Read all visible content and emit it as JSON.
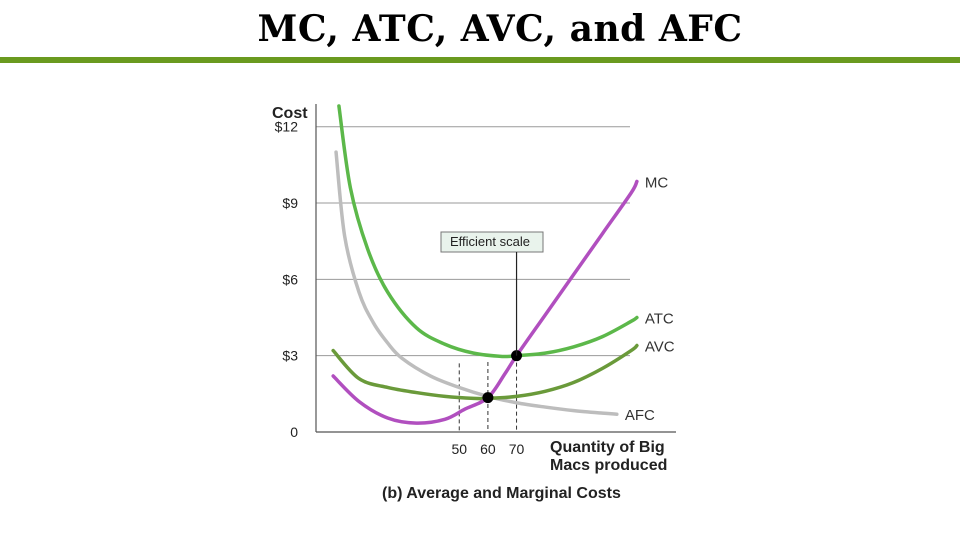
{
  "slide": {
    "title": "MC, ATC, AVC, and AFC",
    "accent_color": "#6a9a1f"
  },
  "caption": "(b) Average and Marginal Costs",
  "chart_data": {
    "type": "line",
    "ylabel": "Cost",
    "xlabel": "Quantity of Big Macs produced",
    "ylim": [
      0,
      12.7
    ],
    "xlim": [
      0,
      135
    ],
    "yticks": [
      {
        "value": 0,
        "label": "0"
      },
      {
        "value": 3,
        "label": "$3"
      },
      {
        "value": 6,
        "label": "$6"
      },
      {
        "value": 9,
        "label": "$9"
      },
      {
        "value": 12,
        "label": "$12"
      }
    ],
    "xticks": [
      {
        "value": 50,
        "label": "50"
      },
      {
        "value": 60,
        "label": "60"
      },
      {
        "value": 70,
        "label": "70"
      }
    ],
    "grid_y": true,
    "series": [
      {
        "name": "MC",
        "color": "#b14fbf",
        "x": [
          6,
          15,
          25,
          35,
          45,
          52,
          60,
          66,
          70,
          80,
          90,
          100,
          110,
          112
        ],
        "y": [
          2.2,
          1.2,
          0.55,
          0.35,
          0.5,
          0.9,
          1.35,
          2.3,
          3.0,
          4.6,
          6.2,
          7.8,
          9.4,
          9.85
        ]
      },
      {
        "name": "ATC",
        "color": "#5cb84a",
        "x": [
          8,
          12,
          18,
          25,
          35,
          45,
          55,
          65,
          70,
          80,
          90,
          100,
          110,
          112
        ],
        "y": [
          13.6,
          9.6,
          7.2,
          5.5,
          4.1,
          3.45,
          3.1,
          2.97,
          3.0,
          3.1,
          3.35,
          3.75,
          4.35,
          4.5
        ]
      },
      {
        "name": "AVC",
        "color": "#6a9a3a",
        "x": [
          6,
          15,
          25,
          35,
          45,
          55,
          60,
          70,
          80,
          90,
          100,
          110,
          112
        ],
        "y": [
          3.2,
          2.1,
          1.75,
          1.55,
          1.4,
          1.32,
          1.32,
          1.4,
          1.6,
          1.95,
          2.5,
          3.2,
          3.4
        ]
      },
      {
        "name": "AFC",
        "color": "#bdbdbd",
        "x": [
          7,
          10,
          15,
          20,
          25,
          30,
          40,
          50,
          60,
          70,
          80,
          90,
          100,
          105
        ],
        "y": [
          11.0,
          7.7,
          5.5,
          4.3,
          3.5,
          2.9,
          2.2,
          1.75,
          1.4,
          1.15,
          0.98,
          0.84,
          0.74,
          0.7
        ]
      }
    ],
    "points": [
      {
        "x": 70,
        "y": 3.0
      },
      {
        "x": 60,
        "y": 1.35
      }
    ],
    "guides_x": [
      50,
      60,
      70
    ],
    "annotation": {
      "text": "Efficient scale",
      "x": 70,
      "y": 3.0
    }
  }
}
